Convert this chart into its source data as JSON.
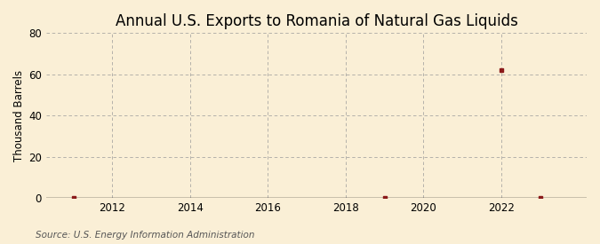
{
  "title": "Annual U.S. Exports to Romania of Natural Gas Liquids",
  "ylabel": "Thousand Barrels",
  "source": "Source: U.S. Energy Information Administration",
  "background_color": "#faefd6",
  "plot_bg_color": "#faefd6",
  "grid_color": "#999999",
  "marker_color": "#8b1a1a",
  "x_data": [
    2011,
    2019,
    2022,
    2023
  ],
  "y_data": [
    0,
    0,
    62,
    0
  ],
  "xlim": [
    2010.3,
    2024.2
  ],
  "ylim": [
    0,
    80
  ],
  "xticks": [
    2012,
    2014,
    2016,
    2018,
    2020,
    2022
  ],
  "yticks": [
    0,
    20,
    40,
    60,
    80
  ],
  "title_fontsize": 12,
  "label_fontsize": 8.5,
  "tick_fontsize": 8.5,
  "source_fontsize": 7.5
}
